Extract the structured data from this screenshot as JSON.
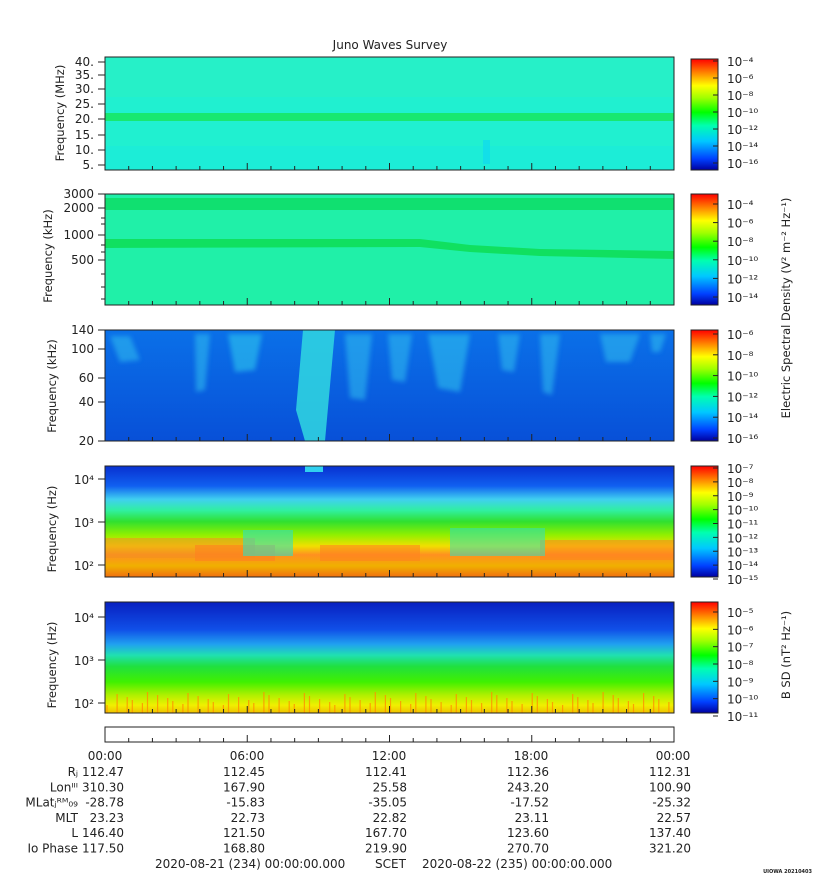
{
  "title": "Juno Waves Survey",
  "colorbar_titles": {
    "electric": "Electric Spectral Density (V² m⁻² Hz⁻¹)",
    "magnetic": "B SD (nT² Hz⁻¹)"
  },
  "ephemeris": {
    "time_labels": [
      "00:00",
      "06:00",
      "12:00",
      "18:00",
      "00:00"
    ],
    "rows": [
      {
        "label": "Rⱼ",
        "values": [
          "112.47",
          "112.45",
          "112.41",
          "112.36",
          "112.31"
        ]
      },
      {
        "label": "Lonᴵᴵᴵ",
        "values": [
          "310.30",
          "167.90",
          "25.58",
          "243.20",
          "100.90"
        ]
      },
      {
        "label": "MLatⱼᴿᴹ₀₉",
        "values": [
          "-28.78",
          "-15.83",
          "-35.05",
          "-17.52",
          "-25.32"
        ]
      },
      {
        "label": "MLT",
        "values": [
          "23.23",
          "22.73",
          "22.82",
          "23.11",
          "22.57"
        ]
      },
      {
        "label": "L",
        "values": [
          "146.40",
          "121.50",
          "167.70",
          "123.60",
          "137.40"
        ]
      },
      {
        "label": "Io Phase",
        "values": [
          "117.50",
          "168.80",
          "219.90",
          "270.70",
          "321.20"
        ]
      }
    ]
  },
  "footer": {
    "start": "2020-08-21 (234) 00:00:00.000",
    "scet": "SCET",
    "end": "2020-08-22 (235) 00:00:00.000",
    "credit": "UIOWA 20210403"
  },
  "chart_data": [
    {
      "type": "heatmap",
      "ylabel": "Frequency (MHz)",
      "y_ticks": [
        "40.",
        "35.",
        "30.",
        "25.",
        "20.",
        "15.",
        "10.",
        "5."
      ],
      "y_range": [
        3.5,
        41.5
      ],
      "colorbar": {
        "labels": [
          "10⁻⁴",
          "10⁻⁶",
          "10⁻⁸",
          "10⁻¹⁰",
          "10⁻¹²",
          "10⁻¹⁴",
          "10⁻¹⁶"
        ]
      },
      "features": [
        {
          "frequency": 21,
          "unit": "MHz",
          "description": "emission band"
        }
      ]
    },
    {
      "type": "heatmap",
      "ylabel": "Frequency (kHz)",
      "y_ticks": [
        "3000",
        "2000",
        "1000",
        "500"
      ],
      "y_scale": "log",
      "y_range": [
        150,
        3000
      ],
      "colorbar": {
        "labels": [
          "10⁻⁴",
          "10⁻⁶",
          "10⁻⁸",
          "10⁻¹⁰",
          "10⁻¹²",
          "10⁻¹⁴"
        ]
      }
    },
    {
      "type": "heatmap",
      "ylabel": "Frequency (kHz)",
      "y_ticks": [
        "140",
        "100",
        "60",
        "40",
        "20"
      ],
      "y_scale": "log",
      "y_range": [
        20,
        140
      ],
      "colorbar": {
        "labels": [
          "10⁻⁶",
          "10⁻⁸",
          "10⁻¹⁰",
          "10⁻¹²",
          "10⁻¹⁴",
          "10⁻¹⁶"
        ]
      }
    },
    {
      "type": "heatmap",
      "ylabel": "Frequency (Hz)",
      "y_ticks": [
        "10⁴",
        "10³",
        "10²"
      ],
      "y_scale": "log",
      "y_range": [
        50,
        20000
      ],
      "colorbar": {
        "labels": [
          "10⁻⁷",
          "10⁻⁸",
          "10⁻⁹",
          "10⁻¹⁰",
          "10⁻¹¹",
          "10⁻¹²",
          "10⁻¹³",
          "10⁻¹⁴",
          "10⁻¹⁵"
        ]
      }
    },
    {
      "type": "heatmap",
      "ylabel": "Frequency (Hz)",
      "y_ticks": [
        "10⁴",
        "10³",
        "10²"
      ],
      "y_scale": "log",
      "y_range": [
        50,
        20000
      ],
      "colorbar": {
        "labels": [
          "10⁻⁵",
          "10⁻⁶",
          "10⁻⁷",
          "10⁻⁸",
          "10⁻⁹",
          "10⁻¹⁰",
          "10⁻¹¹"
        ]
      }
    }
  ]
}
